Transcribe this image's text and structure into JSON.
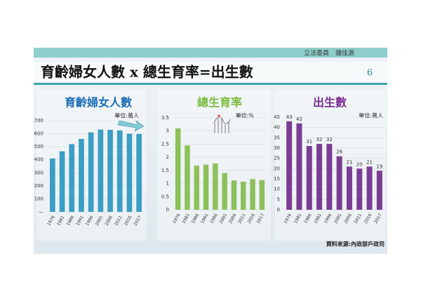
{
  "header": {
    "author": "立法委員　鍾佳源",
    "title": "育齡婦女人數 x 總生育率=出生數",
    "page": "6"
  },
  "source": "資料來源:內政部戶政司",
  "chart_data": [
    {
      "type": "bar",
      "title": "育齡婦女人數",
      "unit": "單位:萬人",
      "color": "#3b9ec4",
      "categories": [
        "1976",
        "1981",
        "1986",
        "1991",
        "1996",
        "2001",
        "2006",
        "2011",
        "2016",
        "2017"
      ],
      "values": [
        410,
        465,
        520,
        560,
        610,
        632,
        630,
        625,
        600,
        598
      ],
      "ylim": [
        0,
        700
      ],
      "yticks": [
        {
          "value": 0,
          "label": "—"
        },
        100,
        200,
        300,
        400,
        500,
        600,
        700
      ],
      "grid": true
    },
    {
      "type": "bar",
      "title": "總生育率",
      "unit": "單位:%",
      "color": "#8dc05a",
      "categories": [
        "1976",
        "1981",
        "1986",
        "1991",
        "1996",
        "2001",
        "2006",
        "2011",
        "2016",
        "2017"
      ],
      "values": [
        3.1,
        2.45,
        1.68,
        1.72,
        1.76,
        1.4,
        1.12,
        1.07,
        1.17,
        1.13
      ],
      "ylim": [
        0,
        3.5
      ],
      "yticks": [
        0,
        0.5,
        1,
        1.5,
        2,
        2.5,
        3,
        3.5
      ],
      "grid": true
    },
    {
      "type": "bar",
      "title": "出生數",
      "unit": "單位:萬人",
      "color": "#7b3c93",
      "categories": [
        "1976",
        "1981",
        "1986",
        "1991",
        "1996",
        "2001",
        "2006",
        "2011",
        "2016",
        "2017"
      ],
      "values": [
        43,
        42,
        31,
        32,
        32,
        26,
        21,
        20,
        21,
        19
      ],
      "ylim": [
        0,
        45
      ],
      "yticks": [
        0,
        5,
        10,
        15,
        20,
        25,
        30,
        35,
        40,
        45
      ],
      "grid": true,
      "data_labels": true
    }
  ]
}
